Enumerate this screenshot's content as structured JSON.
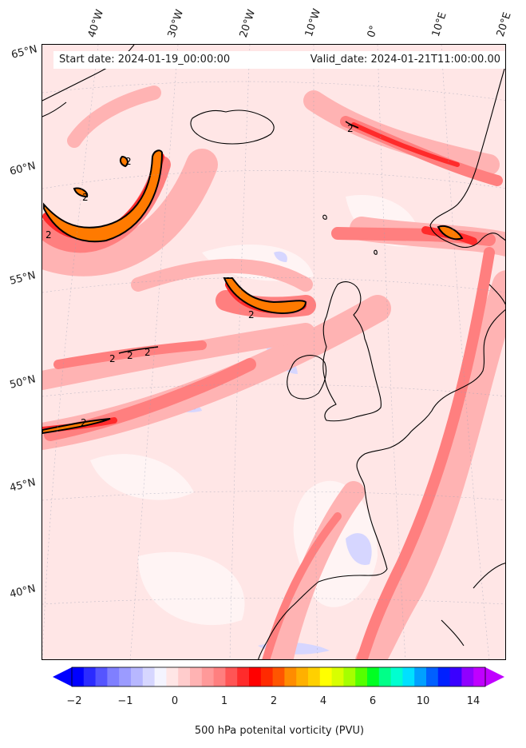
{
  "map": {
    "start_date": "Start date: 2024-01-19_00:00:00",
    "valid_date": "Valid_date: 2024-01-21T11:00:00.00",
    "longitude_labels": [
      "40°W",
      "30°W",
      "20°W",
      "10°W",
      "0°",
      "10°E",
      "20°E"
    ],
    "latitude_labels": [
      "65°N",
      "60°N",
      "55°N",
      "50°N",
      "45°N",
      "40°N"
    ],
    "contour_value_labels": [
      "2",
      "2",
      "2",
      "2",
      "2",
      "2",
      "2",
      "2",
      "2"
    ],
    "features": {
      "coastline_color": "#000000",
      "contour_level": "2 PVU",
      "graticule": true
    }
  },
  "colorbar": {
    "label": "500 hPa potenital vorticity (PVU)",
    "tick_labels": [
      "−2",
      "−1",
      "0",
      "1",
      "2",
      "4",
      "6",
      "10",
      "14"
    ],
    "colors": [
      "#0000ff",
      "#2b2bff",
      "#5555ff",
      "#7f7fff",
      "#9b9bff",
      "#b7b7ff",
      "#d6d6ff",
      "#f4f4ff",
      "#ffe6e6",
      "#ffcccc",
      "#ffb3b3",
      "#ff9999",
      "#ff7f7f",
      "#ff5555",
      "#ff2b2b",
      "#ff0000",
      "#ff2a00",
      "#ff5500",
      "#ff8c00",
      "#ffb000",
      "#ffd000",
      "#ffff00",
      "#d8ff00",
      "#a5ff00",
      "#55ff00",
      "#00ff22",
      "#00ff88",
      "#00ffd0",
      "#00e0ff",
      "#00a0ff",
      "#0060ff",
      "#0020ff",
      "#3a00ff",
      "#9000ff",
      "#c000ff"
    ],
    "under_color": "#0000ff",
    "over_color": "#c000ff"
  }
}
